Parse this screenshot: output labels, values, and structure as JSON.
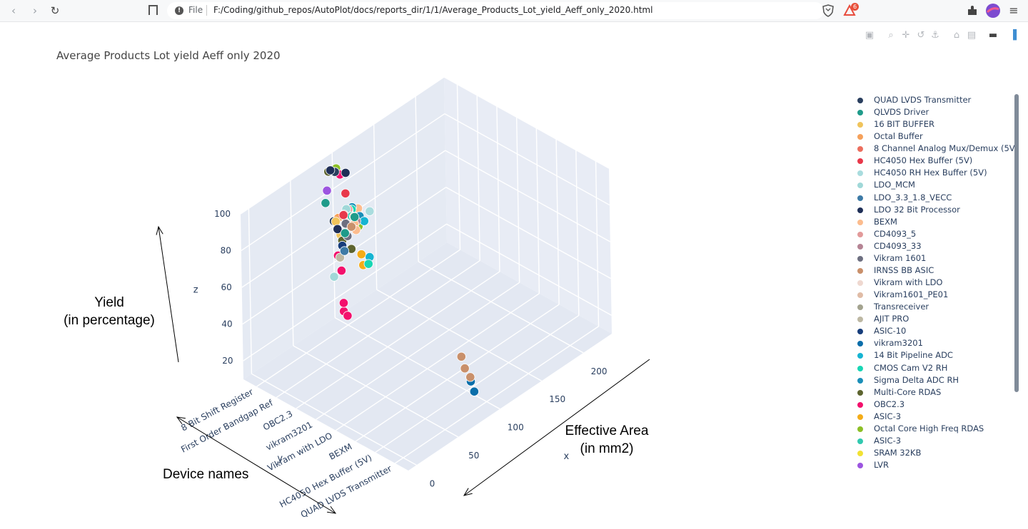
{
  "browser": {
    "scheme": "File",
    "url": "F:/Coding/github_repos/AutoPlot/docs/reports_dir/1/1/Average_Products_Lot_yield_Aeff_only_2020.html",
    "badge_count": "6"
  },
  "plot": {
    "title": "Average Products Lot yield Aeff only 2020"
  },
  "modebar": [
    "camera-icon",
    "zoom-icon",
    "pan-icon",
    "orbit-icon",
    "turntable-icon",
    "reset-camera-icon",
    "reset-last-save-icon",
    "hover-icon",
    "plotly-logo-icon"
  ],
  "chart_data": {
    "type": "scatter",
    "projection": "3d",
    "axes": {
      "x": {
        "label": "x",
        "ticks": [
          "0",
          "50",
          "100",
          "150",
          "200"
        ]
      },
      "y": {
        "label": "y",
        "ticks": [
          "QUAD LVDS Transmitter",
          "HC4050 Hex Buffer (5V)",
          "BEXM",
          "Vikram with LDO",
          "vikram3201",
          "OBC2.3",
          "First Order Bandgap Ref",
          "8 Bit Shift Register"
        ]
      },
      "z": {
        "label": "z",
        "ticks": [
          "20",
          "40",
          "60",
          "80",
          "100"
        ],
        "range": [
          10,
          100
        ]
      }
    },
    "legend_placement": "right",
    "series": [
      {
        "name": "QUAD LVDS Transmitter",
        "color": "#2a3f5f"
      },
      {
        "name": "QLVDS Driver",
        "color": "#1f9b8a"
      },
      {
        "name": "16 BIT BUFFER",
        "color": "#f0c45c"
      },
      {
        "name": "Octal Buffer",
        "color": "#f5a15b"
      },
      {
        "name": "8 Channel Analog Mux/Demux (5V)",
        "color": "#ec6e5e"
      },
      {
        "name": "HC4050 Hex Buffer (5V)",
        "color": "#e8384a"
      },
      {
        "name": "HC4050 RH Hex Buffer (5V)",
        "color": "#a9dcde"
      },
      {
        "name": "LDO_MCM",
        "color": "#a0d8d8"
      },
      {
        "name": "LDO_3.3_1.8_VECC",
        "color": "#3d7aa6"
      },
      {
        "name": "LDO 32 Bit Processor",
        "color": "#1f2f57"
      },
      {
        "name": "BEXM",
        "color": "#fcbc8e"
      },
      {
        "name": "CD4093_5",
        "color": "#e29a9a"
      },
      {
        "name": "CD4093_33",
        "color": "#b58494"
      },
      {
        "name": "Vikram 1601",
        "color": "#6d6f80"
      },
      {
        "name": "IRNSS BB ASIC",
        "color": "#c9906b"
      },
      {
        "name": "Vikram with LDO",
        "color": "#efd8d0"
      },
      {
        "name": "Vikram1601_PE01",
        "color": "#e0bca6"
      },
      {
        "name": "Transreceiver",
        "color": "#a3a38f"
      },
      {
        "name": "AJIT PRO",
        "color": "#bdb8a3"
      },
      {
        "name": "ASIC-10",
        "color": "#173d7b"
      },
      {
        "name": "vikram3201",
        "color": "#0a6eaa"
      },
      {
        "name": "14 Bit Pipeline ADC",
        "color": "#16b4d2"
      },
      {
        "name": "CMOS Cam V2 RH",
        "color": "#18d6b4"
      },
      {
        "name": "Sigma Delta ADC RH",
        "color": "#1b8fb8"
      },
      {
        "name": "Multi-Core RDAS",
        "color": "#5d642f"
      },
      {
        "name": "OBC2.3",
        "color": "#f3106c"
      },
      {
        "name": "ASIC-3",
        "color": "#f4ac18"
      },
      {
        "name": "Octal Core High Freq RDAS",
        "color": "#8cbf26"
      },
      {
        "name": "ASIC-3",
        "color": "#31c9b0"
      },
      {
        "name": "SRAM 32KB",
        "color": "#f2e233"
      },
      {
        "name": "LVR",
        "color": "#9c55e0"
      }
    ]
  },
  "annotations": {
    "yield": [
      "Yield",
      "(in percentage)"
    ],
    "area": [
      "Effective Area",
      "(in mm2)"
    ],
    "devices": "Device names"
  }
}
